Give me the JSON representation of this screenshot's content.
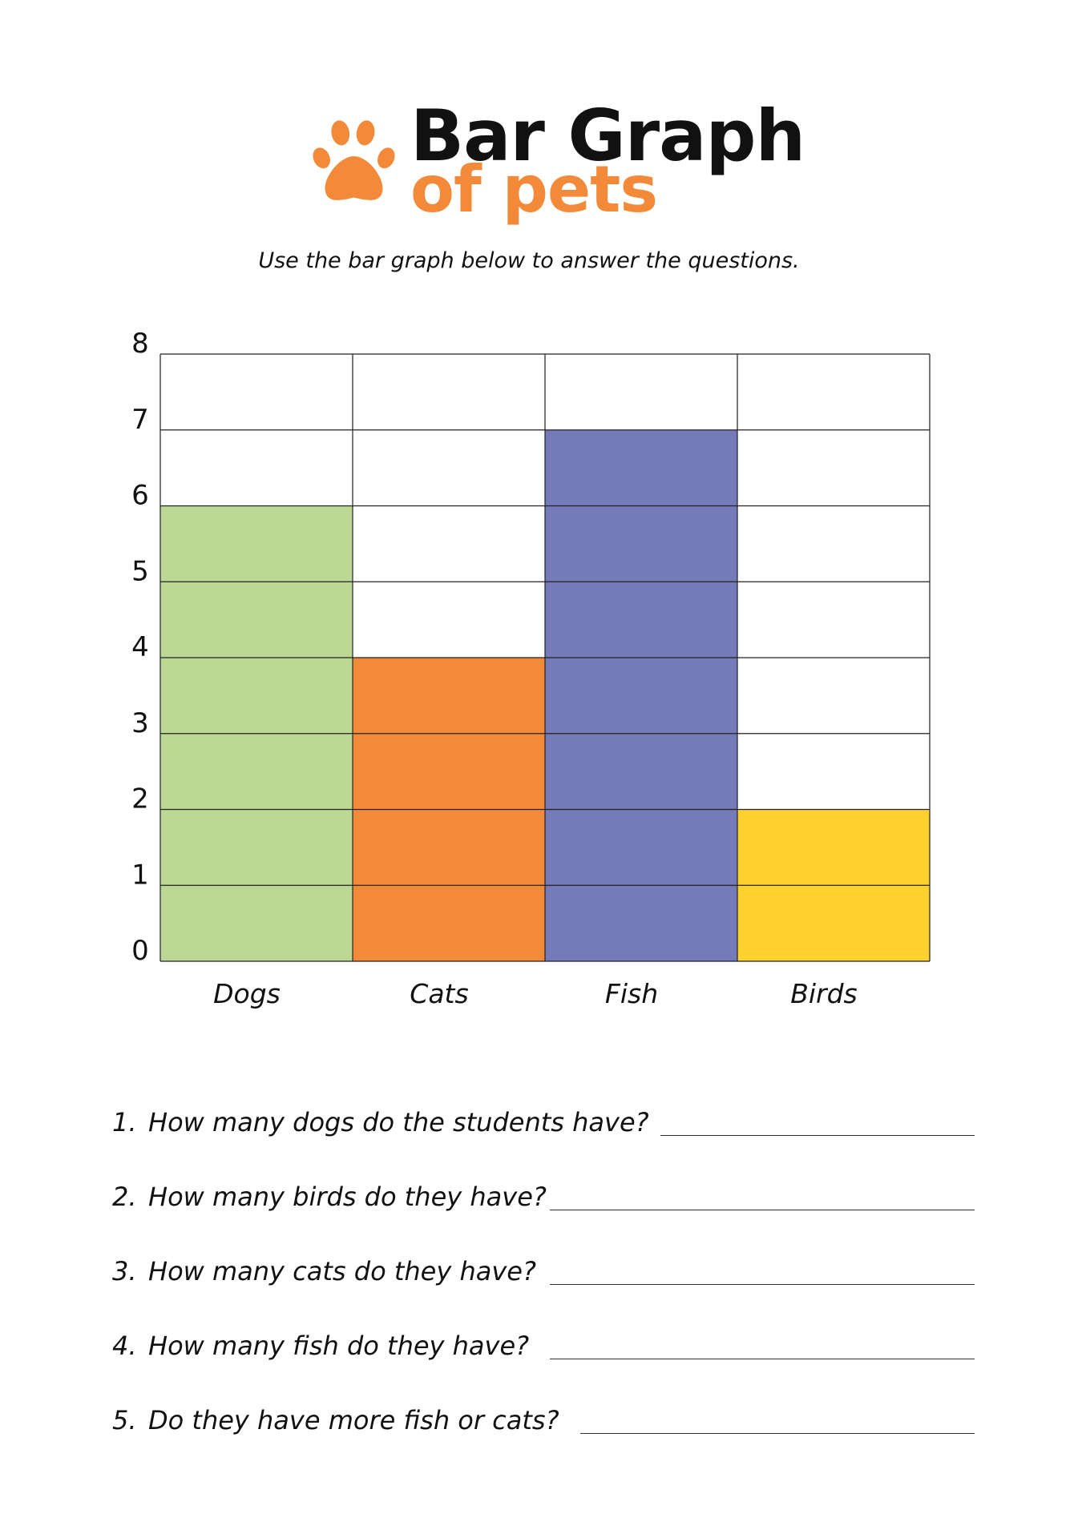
{
  "header": {
    "title_main": "Bar Graph",
    "title_sub": "of pets",
    "instructions": "Use the bar graph below to answer the questions.",
    "icon": "paw-print-icon",
    "accent_color": "#f38a3a"
  },
  "chart_data": {
    "type": "bar",
    "categories": [
      "Dogs",
      "Cats",
      "Fish",
      "Birds"
    ],
    "values": [
      6,
      4,
      7,
      2
    ],
    "colors": [
      "#bdd794",
      "#f38a3a",
      "#757ab8",
      "#ffd230"
    ],
    "title": "",
    "xlabel": "",
    "ylabel": "",
    "ylim": [
      0,
      8
    ],
    "yticks": [
      "0",
      "1",
      "2",
      "3",
      "4",
      "5",
      "6",
      "7",
      "8"
    ],
    "grid": true,
    "legend": "none"
  },
  "questions": [
    {
      "number": "1.",
      "text": "How many dogs do the students have?"
    },
    {
      "number": "2.",
      "text": "How many birds do they have?"
    },
    {
      "number": "3.",
      "text": "How many cats do they have?"
    },
    {
      "number": "4.",
      "text": "How many fish do they have?"
    },
    {
      "number": "5.",
      "text": "Do they have more fish or cats?"
    }
  ]
}
